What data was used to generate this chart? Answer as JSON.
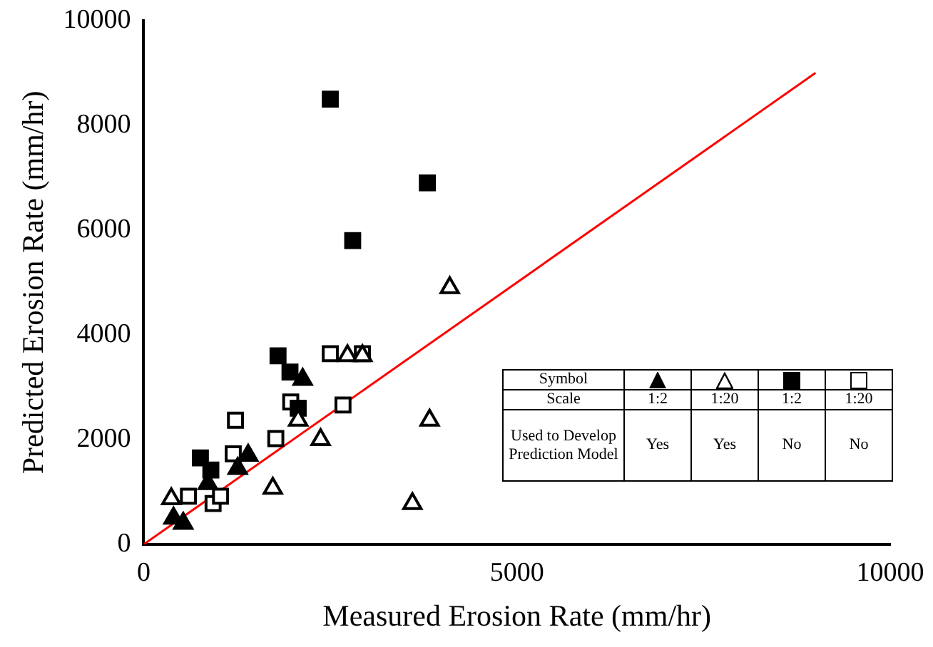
{
  "chart_data": {
    "type": "scatter",
    "xlabel": "Measured Erosion Rate (mm/hr)",
    "ylabel": "Predicted Erosion Rate (mm/hr)",
    "xlim": [
      0,
      10000
    ],
    "xticks": [
      0,
      5000,
      10000
    ],
    "ylim": [
      0,
      10000
    ],
    "yticks": [
      0,
      2000,
      4000,
      6000,
      8000,
      10000
    ],
    "grid": false,
    "annotations": [
      "Symbol",
      "Scale",
      "1:2",
      "1:20",
      "1:2",
      "1:20",
      "Used to Develop Prediction Model",
      "Yes",
      "Yes",
      "No",
      "No"
    ],
    "series": [
      {
        "color": "#000000",
        "marker": "triangle",
        "x": [
          2130,
          1400,
          1260,
          860,
          400,
          530
        ],
        "values": [
          3150,
          1700,
          1450,
          1160,
          500,
          400
        ]
      },
      {
        "color": "#000000",
        "marker": "triangle-open",
        "x": [
          4100,
          3830,
          2370,
          1730,
          3600,
          2070,
          370,
          2730,
          2930
        ],
        "values": [
          4900,
          2370,
          2000,
          1070,
          780,
          2370,
          870,
          3600,
          3600
        ]
      },
      {
        "color": "#000000",
        "marker": "square",
        "x": [
          2500,
          3800,
          2800,
          1800,
          1960,
          2070,
          760,
          900
        ],
        "values": [
          8500,
          6900,
          5800,
          3600,
          3290,
          2600,
          1650,
          1420
        ]
      },
      {
        "color": "#000000",
        "marker": "square-open",
        "x": [
          2500,
          2930,
          1230,
          1770,
          1970,
          2670,
          1200,
          600,
          930,
          1030
        ],
        "values": [
          3640,
          3640,
          2370,
          2020,
          2720,
          2660,
          1730,
          920,
          780,
          920
        ]
      },
      {
        "type": "line",
        "color": "#ff0000",
        "marker": "none",
        "x": [
          0,
          9000
        ],
        "values": [
          0,
          9000
        ]
      }
    ]
  }
}
